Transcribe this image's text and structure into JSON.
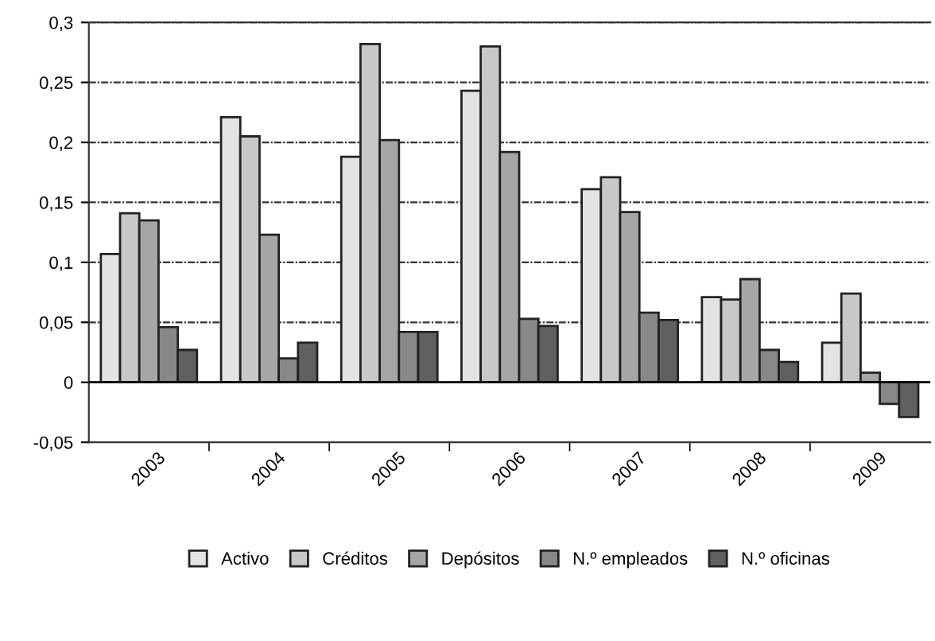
{
  "chart_data": {
    "type": "bar",
    "categories": [
      "2003",
      "2004",
      "2005",
      "2006",
      "2007",
      "2008",
      "2009"
    ],
    "series": [
      {
        "name": "Activo",
        "color": "#e3e3e3",
        "values": [
          0.107,
          0.221,
          0.188,
          0.243,
          0.161,
          0.071,
          0.033
        ]
      },
      {
        "name": "Créditos",
        "color": "#c8c8c8",
        "values": [
          0.141,
          0.205,
          0.282,
          0.28,
          0.171,
          0.069,
          0.074
        ]
      },
      {
        "name": "Depósitos",
        "color": "#a6a6a6",
        "values": [
          0.135,
          0.123,
          0.202,
          0.192,
          0.142,
          0.086,
          0.008
        ]
      },
      {
        "name": "N.º empleados",
        "color": "#888888",
        "values": [
          0.046,
          0.02,
          0.042,
          0.053,
          0.058,
          0.027,
          -0.018
        ]
      },
      {
        "name": "N.º oficinas",
        "color": "#606060",
        "values": [
          0.027,
          0.033,
          0.042,
          0.047,
          0.052,
          0.017,
          -0.029
        ]
      }
    ],
    "ylim": [
      -0.05,
      0.3
    ],
    "yticks": [
      {
        "value": -0.05,
        "label": "-0,05"
      },
      {
        "value": 0,
        "label": "0"
      },
      {
        "value": 0.05,
        "label": "0,05"
      },
      {
        "value": 0.1,
        "label": "0,1"
      },
      {
        "value": 0.15,
        "label": "0,15"
      },
      {
        "value": 0.2,
        "label": "0,2"
      },
      {
        "value": 0.25,
        "label": "0,25"
      },
      {
        "value": 0.3,
        "label": "0,3"
      }
    ],
    "grid": "y",
    "legend": "bottom",
    "ref_lines": [
      {
        "axis": "y",
        "value": 0,
        "color": "#000000",
        "line_style": "solid"
      }
    ]
  }
}
